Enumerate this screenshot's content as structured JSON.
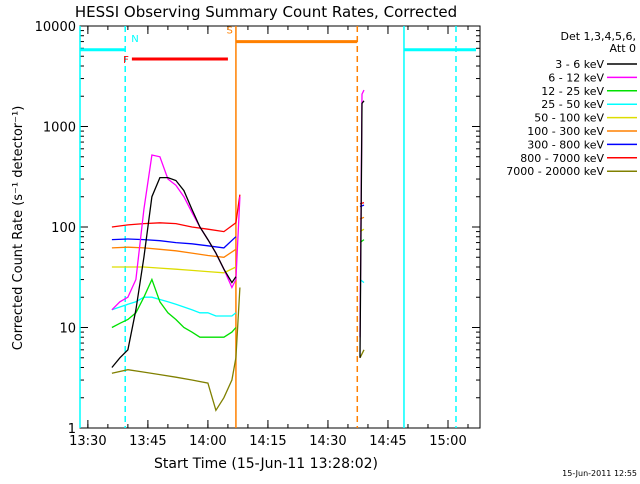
{
  "chart_data": {
    "type": "line",
    "title": "HESSI Observing Summary Count Rates, Corrected",
    "xlabel": "Start Time (15-Jun-11 13:28:02)",
    "ylabel": "Corrected Count Rate (s⁻¹ detector⁻¹)",
    "y_scale": "log",
    "ylim": [
      1,
      10000
    ],
    "xlim": [
      "13:28:02",
      "15:08:00"
    ],
    "x_ticks": [
      "13:30",
      "13:45",
      "14:00",
      "14:15",
      "14:30",
      "14:45",
      "15:00"
    ],
    "y_ticks": [
      "1",
      "10",
      "100",
      "1000",
      "10000"
    ],
    "legend": {
      "placement": "right",
      "header": [
        "Det 1,3,4,5,6,",
        "Att 0"
      ],
      "entries": [
        {
          "name": "3 - 6 keV",
          "color": "#000000"
        },
        {
          "name": "6 - 12 keV",
          "color": "#ff00ff"
        },
        {
          "name": "12 - 25 keV",
          "color": "#00e000"
        },
        {
          "name": "25 - 50 keV",
          "color": "#00ffff"
        },
        {
          "name": "50 - 100 keV",
          "color": "#dddd00"
        },
        {
          "name": "100 - 300 keV",
          "color": "#ff8000"
        },
        {
          "name": "300 - 800 keV",
          "color": "#0000ff"
        },
        {
          "name": "800 - 7000 keV",
          "color": "#ff0000"
        },
        {
          "name": "7000 - 20000 keV",
          "color": "#808000"
        }
      ]
    },
    "series": [
      {
        "name": "3 - 6 keV",
        "segments": [
          {
            "x": [
              "13:36:00",
              "13:38:00",
              "13:40:00",
              "13:42:00",
              "13:44:00",
              "13:46:00",
              "13:48:00",
              "13:50:00",
              "13:52:00",
              "13:54:00",
              "13:56:00",
              "13:58:00",
              "14:00:00",
              "14:02:00",
              "14:04:00",
              "14:06:00",
              "14:07:00"
            ],
            "y": [
              4,
              5,
              6,
              15,
              50,
              200,
              310,
              310,
              290,
              230,
              150,
              100,
              75,
              55,
              38,
              28,
              32
            ]
          },
          {
            "x": [
              "14:38:00",
              "14:38:30",
              "14:39:00"
            ],
            "y": [
              5,
              1700,
              1800
            ]
          }
        ]
      },
      {
        "name": "6 - 12 keV",
        "segments": [
          {
            "x": [
              "13:36:00",
              "13:38:00",
              "13:40:00",
              "13:42:00",
              "13:44:00",
              "13:46:00",
              "13:48:00",
              "13:50:00",
              "13:52:00",
              "13:54:00",
              "13:56:00",
              "13:58:00",
              "14:00:00",
              "14:02:00",
              "14:04:00",
              "14:06:00",
              "14:07:00",
              "14:08:00"
            ],
            "y": [
              15,
              18,
              20,
              30,
              150,
              520,
              500,
              300,
              260,
              200,
              140,
              100,
              75,
              55,
              38,
              25,
              30,
              200
            ]
          },
          {
            "x": [
              "14:38:00",
              "14:38:30",
              "14:39:00"
            ],
            "y": [
              8,
              2100,
              2300
            ]
          }
        ]
      },
      {
        "name": "12 - 25 keV",
        "segments": [
          {
            "x": [
              "13:36:00",
              "13:38:00",
              "13:40:00",
              "13:42:00",
              "13:44:00",
              "13:46:00",
              "13:48:00",
              "13:50:00",
              "13:52:00",
              "13:54:00",
              "13:56:00",
              "13:58:00",
              "14:00:00",
              "14:02:00",
              "14:04:00",
              "14:06:00",
              "14:07:00"
            ],
            "y": [
              10,
              11,
              12,
              14,
              20,
              30,
              18,
              14,
              12,
              10,
              9,
              8,
              8,
              8,
              8,
              9,
              10
            ]
          },
          {
            "x": [
              "14:38:00",
              "14:39:00"
            ],
            "y": [
              70,
              75
            ]
          }
        ]
      },
      {
        "name": "25 - 50 keV",
        "segments": [
          {
            "x": [
              "13:36:00",
              "13:38:00",
              "13:40:00",
              "13:42:00",
              "13:44:00",
              "13:46:00",
              "13:48:00",
              "13:50:00",
              "13:52:00",
              "13:54:00",
              "13:56:00",
              "13:58:00",
              "14:00:00",
              "14:02:00",
              "14:04:00",
              "14:06:00",
              "14:07:00"
            ],
            "y": [
              15,
              16,
              17,
              18,
              20,
              20,
              19,
              18,
              17,
              16,
              15,
              14,
              14,
              13,
              13,
              13,
              14
            ]
          },
          {
            "x": [
              "14:38:00",
              "14:39:00"
            ],
            "y": [
              30,
              28
            ]
          }
        ]
      },
      {
        "name": "50 - 100 keV",
        "segments": [
          {
            "x": [
              "13:36:00",
              "13:40:00",
              "13:44:00",
              "13:48:00",
              "13:52:00",
              "13:56:00",
              "14:00:00",
              "14:04:00",
              "14:07:00"
            ],
            "y": [
              40,
              40,
              40,
              39,
              38,
              37,
              36,
              35,
              40
            ]
          },
          {
            "x": [
              "14:38:00",
              "14:39:00"
            ],
            "y": [
              90,
              95
            ]
          }
        ]
      },
      {
        "name": "100 - 300 keV",
        "segments": [
          {
            "x": [
              "13:36:00",
              "13:40:00",
              "13:44:00",
              "13:48:00",
              "13:52:00",
              "13:56:00",
              "14:00:00",
              "14:04:00",
              "14:07:00"
            ],
            "y": [
              62,
              63,
              62,
              60,
              58,
              55,
              52,
              50,
              60
            ]
          },
          {
            "x": [
              "14:38:00",
              "14:39:00"
            ],
            "y": [
              120,
              125
            ]
          }
        ]
      },
      {
        "name": "300 - 800 keV",
        "segments": [
          {
            "x": [
              "13:36:00",
              "13:40:00",
              "13:44:00",
              "13:48:00",
              "13:52:00",
              "13:56:00",
              "14:00:00",
              "14:04:00",
              "14:07:00"
            ],
            "y": [
              75,
              76,
              75,
              73,
              70,
              68,
              65,
              62,
              80
            ]
          },
          {
            "x": [
              "14:38:00",
              "14:39:00"
            ],
            "y": [
              160,
              165
            ]
          }
        ]
      },
      {
        "name": "800 - 7000 keV",
        "segments": [
          {
            "x": [
              "13:36:00",
              "13:40:00",
              "13:44:00",
              "13:48:00",
              "13:52:00",
              "13:56:00",
              "14:00:00",
              "14:04:00",
              "14:07:00",
              "14:08:00"
            ],
            "y": [
              100,
              105,
              108,
              110,
              108,
              100,
              95,
              90,
              110,
              210
            ]
          },
          {
            "x": [
              "14:38:00",
              "14:39:00"
            ],
            "y": [
              170,
              175
            ]
          }
        ]
      },
      {
        "name": "7000 - 20000 keV",
        "segments": [
          {
            "x": [
              "13:36:00",
              "13:40:00",
              "13:44:00",
              "13:48:00",
              "13:52:00",
              "13:56:00",
              "14:00:00",
              "14:02:00",
              "14:04:00",
              "14:06:00",
              "14:07:00",
              "14:08:00"
            ],
            "y": [
              3.5,
              3.8,
              3.6,
              3.4,
              3.2,
              3.0,
              2.8,
              1.5,
              2.0,
              3.0,
              5.0,
              25
            ]
          },
          {
            "x": [
              "14:38:00",
              "14:39:00"
            ],
            "y": [
              5,
              6
            ]
          }
        ]
      }
    ],
    "annotations": {
      "bars": [
        {
          "label": "",
          "color": "#00ffff",
          "x_start": "13:28:02",
          "x_end": "13:39:20",
          "y": 5800
        },
        {
          "label": "N",
          "color": "#00ffff",
          "x_start": "13:39:20",
          "x_end": "13:39:20",
          "y": 5800
        },
        {
          "label": "F",
          "color": "#ff0000",
          "x_start": "13:41:00",
          "x_end": "14:05:00",
          "y": 4700
        },
        {
          "label": "S",
          "color": "#ff8000",
          "x_start": "14:07:00",
          "x_end": "14:37:20",
          "y": 7000
        },
        {
          "label": "",
          "color": "#00ffff",
          "x_start": "14:49:00",
          "x_end": "15:07:00",
          "y": 5800
        }
      ],
      "vlines": [
        {
          "x": "13:28:02",
          "color": "#00ffff",
          "style": "solid"
        },
        {
          "x": "13:39:20",
          "color": "#00ffff",
          "style": "dashed"
        },
        {
          "x": "14:07:00",
          "color": "#ff8000",
          "style": "solid"
        },
        {
          "x": "14:37:20",
          "color": "#ff8000",
          "style": "dashed"
        },
        {
          "x": "14:49:00",
          "color": "#00ffff",
          "style": "solid"
        },
        {
          "x": "15:02:00",
          "color": "#00ffff",
          "style": "dashed"
        }
      ]
    },
    "footer_timestamp": "15-Jun-2011 12:55"
  }
}
